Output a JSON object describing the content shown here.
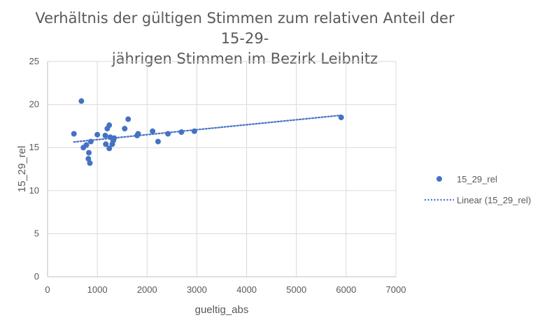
{
  "chart_data": {
    "type": "scatter",
    "title_line1": "Verhältnis der gültigen Stimmen zum relativen Anteil der 15-29-",
    "title_line2": "jährigen Stimmen im Bezirk Leibnitz",
    "xlabel": "gueltig_abs",
    "ylabel": "15_29_rel",
    "xlim": [
      0,
      7000
    ],
    "ylim": [
      0,
      25
    ],
    "x_ticks": [
      "0",
      "1000",
      "2000",
      "3000",
      "4000",
      "5000",
      "6000",
      "7000"
    ],
    "y_ticks": [
      "0",
      "5",
      "10",
      "15",
      "20",
      "25"
    ],
    "grid": true,
    "legend_position": "right",
    "series": [
      {
        "name": "15_29_rel",
        "color": "#4472c4",
        "points": [
          [
            530,
            16.6
          ],
          [
            680,
            20.4
          ],
          [
            720,
            15.0
          ],
          [
            780,
            15.3
          ],
          [
            820,
            13.7
          ],
          [
            830,
            14.4
          ],
          [
            850,
            13.2
          ],
          [
            870,
            15.7
          ],
          [
            1000,
            16.5
          ],
          [
            1160,
            16.4
          ],
          [
            1170,
            15.4
          ],
          [
            1200,
            17.2
          ],
          [
            1240,
            17.6
          ],
          [
            1240,
            14.9
          ],
          [
            1260,
            16.2
          ],
          [
            1300,
            15.4
          ],
          [
            1320,
            15.8
          ],
          [
            1340,
            16.1
          ],
          [
            1550,
            17.2
          ],
          [
            1620,
            18.3
          ],
          [
            1800,
            16.4
          ],
          [
            1820,
            16.6
          ],
          [
            2110,
            16.9
          ],
          [
            2220,
            15.7
          ],
          [
            2420,
            16.6
          ],
          [
            2690,
            16.8
          ],
          [
            2950,
            16.9
          ],
          [
            5900,
            18.5
          ]
        ]
      }
    ],
    "trendline": {
      "name": "Linear (15_29_rel)",
      "type": "linear",
      "color": "#4472c4",
      "x_start": 530,
      "x_end": 5900,
      "y_start": 15.65,
      "y_end": 18.75
    }
  }
}
